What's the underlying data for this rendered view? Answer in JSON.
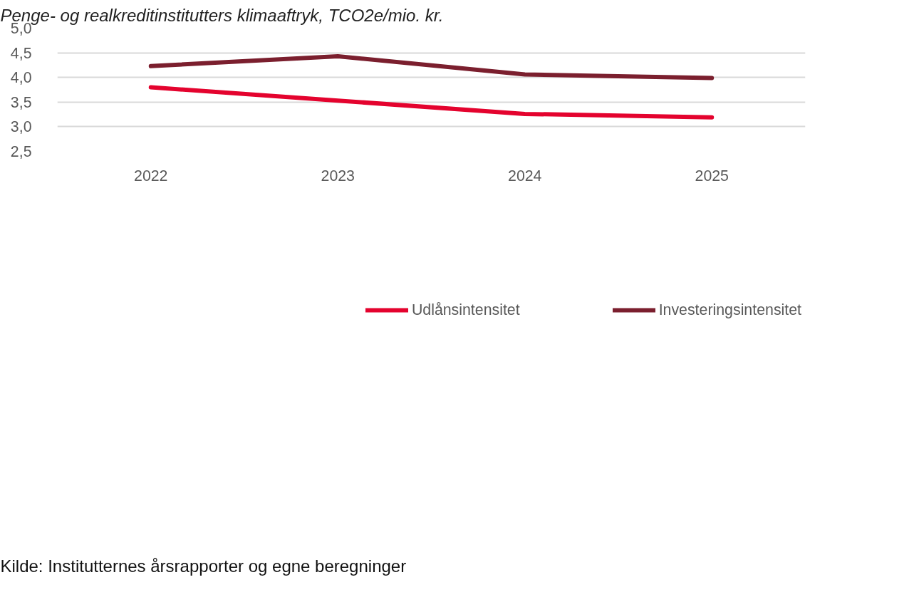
{
  "chart_data": {
    "type": "line",
    "title": "Penge- og realkreditinstitutters klimaaftryk, TCO2e/mio. kr.",
    "categories": [
      "2022",
      "2023",
      "2024",
      "2025"
    ],
    "series": [
      {
        "name": "Udlånsintensitet",
        "color": "#e4032e",
        "values": [
          3.8,
          3.53,
          3.26,
          3.19
        ]
      },
      {
        "name": "Investeringsintensitet",
        "color": "#7b1f2e",
        "values": [
          4.23,
          4.43,
          4.06,
          3.99
        ]
      }
    ],
    "ylim": [
      2.5,
      5.0
    ],
    "yticks": [
      {
        "value": 2.5,
        "label": "2,5"
      },
      {
        "value": 3.0,
        "label": "3,0"
      },
      {
        "value": 3.5,
        "label": "3,5"
      },
      {
        "value": 4.0,
        "label": "4,0"
      },
      {
        "value": 4.5,
        "label": "4,5"
      },
      {
        "value": 5.0,
        "label": "5,0"
      }
    ],
    "grid": "y",
    "legend": "bottom",
    "marker": "none",
    "line_style": "solid",
    "annotations": [
      "Kilde: Institutternes årsrapporter og egne beregninger"
    ]
  }
}
